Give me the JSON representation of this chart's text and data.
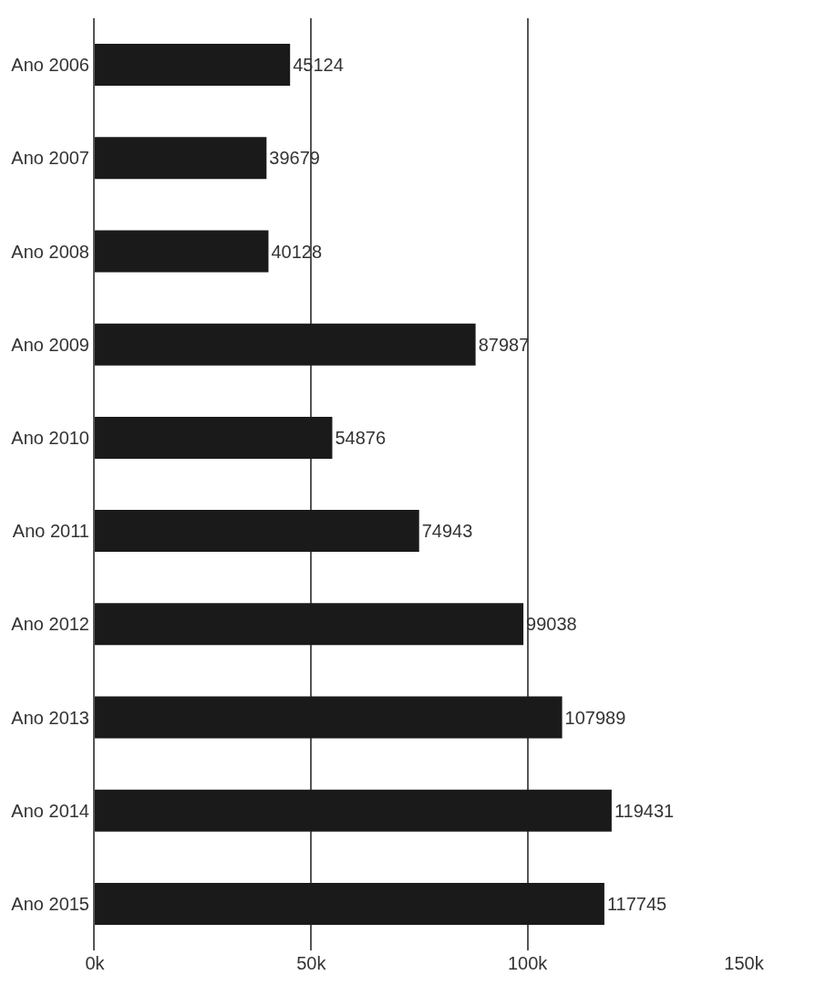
{
  "chart_data": {
    "type": "bar",
    "orientation": "horizontal",
    "categories": [
      "Ano 2006",
      "Ano 2007",
      "Ano 2008",
      "Ano 2009",
      "Ano 2010",
      "Ano 2011",
      "Ano 2012",
      "Ano 2013",
      "Ano 2014",
      "Ano 2015"
    ],
    "values": [
      45124,
      39679,
      40128,
      87987,
      54876,
      74943,
      99038,
      107989,
      119431,
      117745
    ],
    "color": "#1a1a1a",
    "xlim": [
      0,
      150000
    ],
    "xticks": [
      {
        "value": 0,
        "label": "0k"
      },
      {
        "value": 50000,
        "label": "50k"
      },
      {
        "value": 100000,
        "label": "100k"
      },
      {
        "value": 150000,
        "label": "150k"
      }
    ],
    "grid": "x",
    "data_labels": true
  }
}
